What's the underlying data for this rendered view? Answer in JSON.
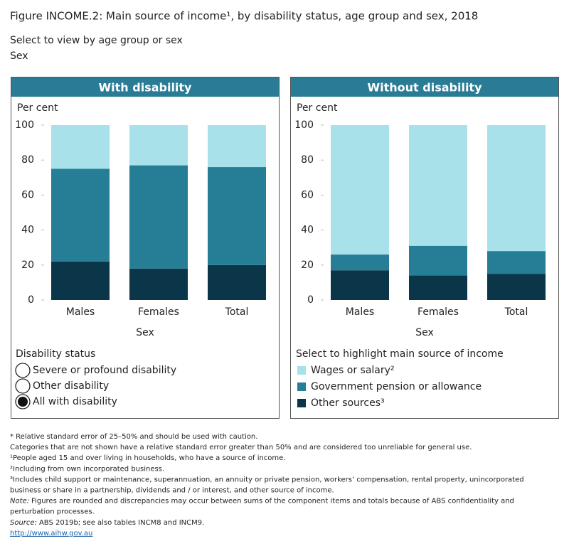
{
  "header": {
    "title": "Figure INCOME.2: Main source of income¹, by disability status, age group and sex, 2018",
    "view_prompt": "Select to view by age group or sex",
    "view_value": "Sex"
  },
  "controls": {
    "title": "Disability status",
    "options": [
      "Severe or profound disability",
      "Other disability",
      "All with disability"
    ],
    "selected": 2
  },
  "legend_title": "Select to highlight main source of income",
  "chart_data": [
    {
      "type": "bar",
      "stacked": true,
      "title": "With disability",
      "y_label": "Per cent",
      "x_label": "Sex",
      "categories": [
        "Males",
        "Females",
        "Total"
      ],
      "ylim": [
        0,
        100
      ],
      "yticks": [
        0,
        20,
        40,
        60,
        80,
        100
      ],
      "series": [
        {
          "color": "#0b3549",
          "values": [
            22,
            18,
            20
          ]
        },
        {
          "color": "#267d96",
          "values": [
            53,
            59,
            56
          ]
        },
        {
          "color": "#a8e1ea",
          "values": [
            25,
            23,
            24
          ]
        }
      ]
    },
    {
      "type": "bar",
      "stacked": true,
      "title": "Without disability",
      "y_label": "Per cent",
      "x_label": "Sex",
      "categories": [
        "Males",
        "Females",
        "Total"
      ],
      "ylim": [
        0,
        100
      ],
      "yticks": [
        0,
        20,
        40,
        60,
        80,
        100
      ],
      "series": [
        {
          "name": "Other sources³",
          "color": "#0b3549",
          "values": [
            17,
            14,
            15
          ]
        },
        {
          "name": "Government pension or allowance",
          "color": "#267d96",
          "values": [
            9,
            17,
            13
          ]
        },
        {
          "name": "Wages or salary²",
          "color": "#a8e1ea",
          "values": [
            74,
            69,
            72
          ]
        }
      ]
    }
  ],
  "footnotes": [
    {
      "text": "* Relative standard error of 25–50% and should be used with caution."
    },
    {
      "text": "Categories that are not shown have a relative standard error greater than 50% and are considered too unreliable for general use."
    },
    {
      "text": "¹People aged 15 and over living in households, who have a source of income."
    },
    {
      "text": "²Including from own incorporated business."
    },
    {
      "text": "³Includes child support or maintenance, superannuation, an annuity or private pension, workers’ compensation, rental property, unincorporated"
    },
    {
      "text": "business or share in a partnership, dividends and / or interest, and other source of income."
    },
    {
      "label": "Note:",
      "text": "Figures are rounded and discrepancies may occur between sums of the component items and totals because of ABS confidentiality and"
    },
    {
      "text": "perturbation processes."
    },
    {
      "label": "Source:",
      "text": "ABS 2019b; see also tables INCM8 and INCM9."
    },
    {
      "link": "http://www.aihw.gov.au"
    }
  ]
}
